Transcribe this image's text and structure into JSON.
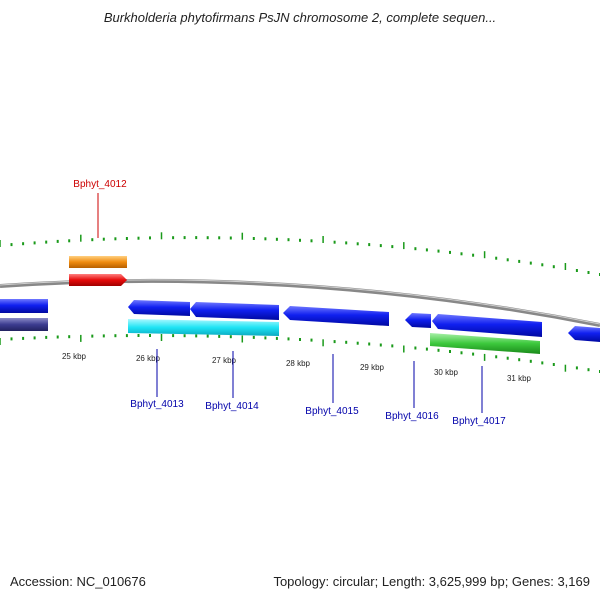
{
  "header": {
    "title": "Burkholderia phytofirmans PsJN chromosome 2, complete sequen..."
  },
  "footer": {
    "accession": "Accession: NC_010676",
    "summary": "Topology: circular; Length: 3,625,999 bp; Genes: 3,169"
  },
  "scale": {
    "ticks": [
      "25 kbp",
      "26 kbp",
      "27 kbp",
      "28 kbp",
      "29 kbp",
      "30 kbp",
      "31 kbp"
    ]
  },
  "genes": [
    {
      "id": "Bphyt_4012",
      "label": "Bphyt_4012",
      "color": "#cc0000"
    },
    {
      "id": "Bphyt_4013",
      "label": "Bphyt_4013",
      "color": "#0000aa"
    },
    {
      "id": "Bphyt_4014",
      "label": "Bphyt_4014",
      "color": "#0000aa"
    },
    {
      "id": "Bphyt_4015",
      "label": "Bphyt_4015",
      "color": "#0000aa"
    },
    {
      "id": "Bphyt_4016",
      "label": "Bphyt_4016",
      "color": "#0000aa"
    },
    {
      "id": "Bphyt_4017",
      "label": "Bphyt_4017",
      "color": "#0000aa"
    }
  ],
  "colors": {
    "cds_forward": "#0a14e6",
    "rna": "#f08c10",
    "gene": "#e60a0a",
    "cds_reverse": "#3a3a8a",
    "cds_cyan": "#14e6f0",
    "green_feature": "#3cc83c",
    "backbone": "#888888",
    "ticks": "#1a9a1a"
  }
}
